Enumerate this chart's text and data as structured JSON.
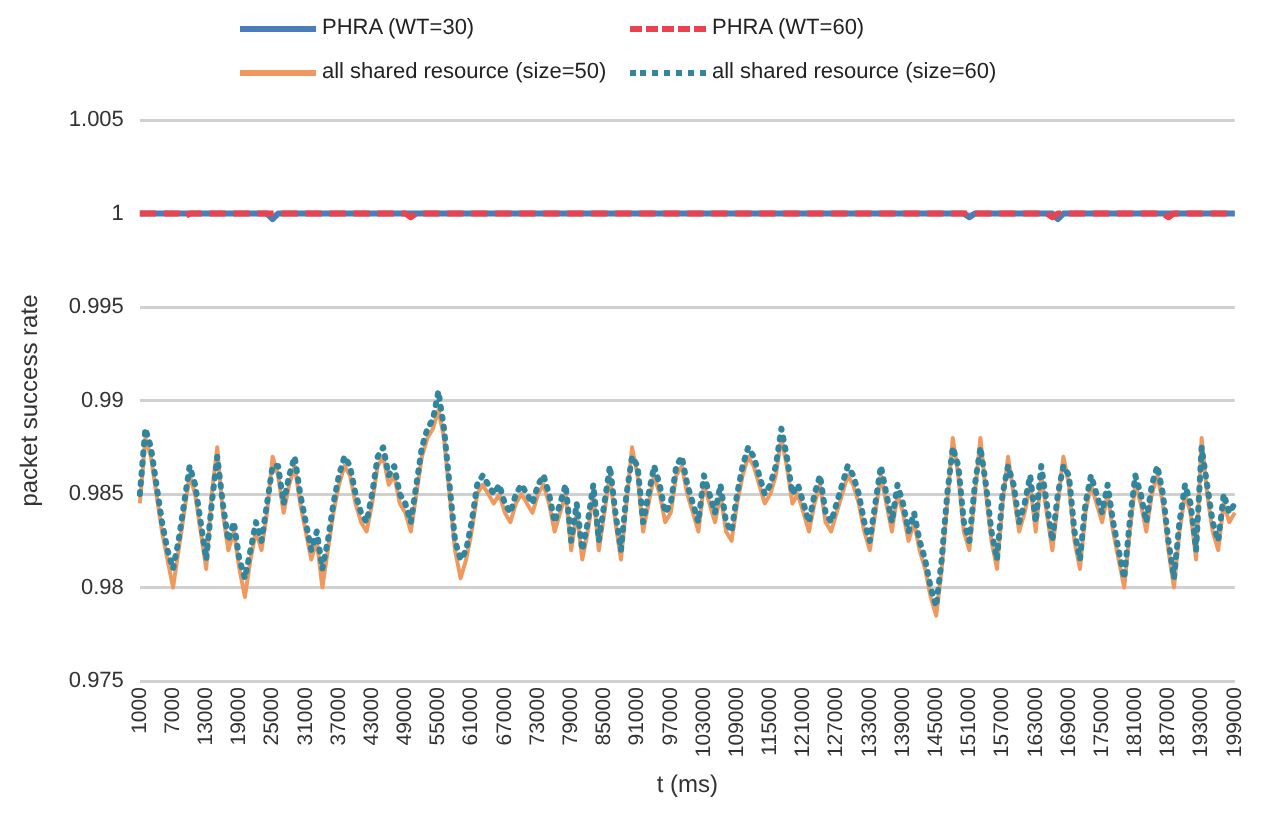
{
  "chart_data": {
    "type": "line",
    "xlabel": "t (ms)",
    "ylabel": "packet success rate",
    "legend": "top",
    "grid": "y",
    "marker": "none",
    "ylim": [
      0.975,
      1.005
    ],
    "yticks": [
      0.975,
      0.98,
      0.985,
      0.99,
      0.995,
      1,
      1.005
    ],
    "categories": [
      "1000",
      null,
      null,
      null,
      null,
      null,
      "7000",
      null,
      null,
      null,
      null,
      null,
      "13000",
      null,
      null,
      null,
      null,
      null,
      "19000",
      null,
      null,
      null,
      null,
      null,
      "25000",
      null,
      null,
      null,
      null,
      null,
      "31000",
      null,
      null,
      null,
      null,
      null,
      "37000",
      null,
      null,
      null,
      null,
      null,
      "43000",
      null,
      null,
      null,
      null,
      null,
      "49000",
      null,
      null,
      null,
      null,
      null,
      "55000",
      null,
      null,
      null,
      null,
      null,
      "61000",
      null,
      null,
      null,
      null,
      null,
      "67000",
      null,
      null,
      null,
      null,
      null,
      "73000",
      null,
      null,
      null,
      null,
      null,
      "79000",
      null,
      null,
      null,
      null,
      null,
      "85000",
      null,
      null,
      null,
      null,
      null,
      "91000",
      null,
      null,
      null,
      null,
      null,
      "97000",
      null,
      null,
      null,
      null,
      null,
      "103000",
      null,
      null,
      null,
      null,
      null,
      "109000",
      null,
      null,
      null,
      null,
      null,
      "115000",
      null,
      null,
      null,
      null,
      null,
      "121000",
      null,
      null,
      null,
      null,
      null,
      "127000",
      null,
      null,
      null,
      null,
      null,
      "133000",
      null,
      null,
      null,
      null,
      null,
      "139000",
      null,
      null,
      null,
      null,
      null,
      "145000",
      null,
      null,
      null,
      null,
      null,
      "151000",
      null,
      null,
      null,
      null,
      null,
      "157000",
      null,
      null,
      null,
      null,
      null,
      "163000",
      null,
      null,
      null,
      null,
      null,
      "169000",
      null,
      null,
      null,
      null,
      null,
      "175000",
      null,
      null,
      null,
      null,
      null,
      "181000",
      null,
      null,
      null,
      null,
      null,
      "187000",
      null,
      null,
      null,
      null,
      null,
      "193000",
      null,
      null,
      null,
      null,
      null,
      "199000"
    ],
    "series": [
      {
        "name": "PHRA (WT=30)",
        "color": "#4a7ebb",
        "line_style": "solid",
        "values": [
          1,
          1,
          1,
          1,
          1,
          1,
          1,
          1,
          1,
          1,
          1,
          1,
          1,
          1,
          1,
          1,
          1,
          1,
          1,
          1,
          1,
          1,
          1,
          1,
          0.9997,
          1,
          1,
          1,
          1,
          1,
          1,
          1,
          1,
          1,
          1,
          1,
          1,
          1,
          1,
          1,
          1,
          1,
          1,
          1,
          1,
          1,
          1,
          1,
          1,
          1,
          1,
          1,
          1,
          1,
          1,
          1,
          1,
          1,
          1,
          1,
          1,
          1,
          1,
          1,
          1,
          1,
          1,
          1,
          1,
          1,
          1,
          1,
          1,
          1,
          1,
          1,
          1,
          1,
          1,
          1,
          1,
          1,
          1,
          1,
          1,
          1,
          1,
          1,
          1,
          1,
          1,
          1,
          1,
          1,
          1,
          1,
          1,
          1,
          1,
          1,
          1,
          1,
          1,
          1,
          1,
          1,
          1,
          1,
          1,
          1,
          1,
          1,
          1,
          1,
          1,
          1,
          1,
          1,
          1,
          1,
          1,
          1,
          1,
          1,
          1,
          1,
          1,
          1,
          1,
          1,
          1,
          1,
          1,
          1,
          1,
          1,
          1,
          1,
          1,
          1,
          1,
          1,
          1,
          1,
          1,
          1,
          1,
          1,
          1,
          1,
          0.9998,
          1,
          1,
          1,
          1,
          1,
          1,
          1,
          1,
          1,
          1,
          1,
          1,
          1,
          1,
          1,
          0.9997,
          1,
          1,
          1,
          1,
          1,
          1,
          1,
          1,
          1,
          1,
          1,
          1,
          1,
          1,
          1,
          1,
          1,
          1,
          1,
          1,
          1,
          1,
          1,
          1,
          1,
          1,
          1,
          1,
          1,
          1,
          1,
          1
        ]
      },
      {
        "name": "PHRA (WT=60)",
        "color": "#e8434f",
        "line_style": "dashed",
        "values": [
          1,
          1,
          1,
          1,
          1,
          1,
          1,
          1,
          0.9998,
          1,
          1,
          1,
          1,
          1,
          1,
          1,
          1,
          1,
          1,
          1,
          1,
          1,
          1,
          1,
          1,
          1,
          1,
          1,
          1,
          1,
          1,
          1,
          1,
          1,
          1,
          1,
          1,
          1,
          1,
          1,
          1,
          1,
          1,
          1,
          1,
          1,
          1,
          1,
          1,
          0.9998,
          1,
          1,
          1,
          1,
          1,
          1,
          1,
          1,
          1,
          1,
          1,
          1,
          1,
          1,
          1,
          1,
          1,
          1,
          1,
          1,
          1,
          1,
          1,
          1,
          1,
          1,
          1,
          1,
          1,
          1,
          1,
          1,
          1,
          1,
          1,
          1,
          1,
          1,
          1,
          1,
          1,
          1,
          1,
          1,
          1,
          1,
          1,
          1,
          1,
          1,
          1,
          1,
          1,
          1,
          1,
          1,
          1,
          1,
          1,
          1,
          1,
          1,
          1,
          1,
          1,
          1,
          1,
          1,
          1,
          1,
          1,
          1,
          1,
          1,
          1,
          1,
          1,
          1,
          1,
          1,
          1,
          1,
          1,
          1,
          1,
          1,
          1,
          1,
          1,
          1,
          1,
          1,
          1,
          1,
          1,
          1,
          1,
          1,
          1,
          1,
          1,
          1,
          1,
          1,
          1,
          1,
          1,
          1,
          1,
          1,
          1,
          1,
          1,
          1,
          1,
          0.9998,
          1,
          1,
          1,
          1,
          1,
          1,
          1,
          1,
          1,
          1,
          1,
          1,
          1,
          1,
          1,
          1,
          1,
          1,
          1,
          1,
          0.9998,
          1,
          1,
          1,
          1,
          1,
          1,
          1,
          1,
          1,
          1,
          1,
          1
        ]
      },
      {
        "name": "all shared resource (size=50)",
        "color": "#f0995e",
        "line_style": "solid",
        "values": [
          0.9845,
          0.988,
          0.987,
          0.985,
          0.983,
          0.9815,
          0.98,
          0.982,
          0.984,
          0.986,
          0.985,
          0.983,
          0.981,
          0.985,
          0.9875,
          0.984,
          0.982,
          0.983,
          0.981,
          0.9795,
          0.9815,
          0.983,
          0.982,
          0.984,
          0.987,
          0.986,
          0.984,
          0.9855,
          0.9865,
          0.9845,
          0.983,
          0.9815,
          0.9825,
          0.98,
          0.982,
          0.984,
          0.9855,
          0.9865,
          0.986,
          0.9845,
          0.9835,
          0.983,
          0.9845,
          0.9865,
          0.987,
          0.9855,
          0.986,
          0.9845,
          0.984,
          0.983,
          0.985,
          0.987,
          0.988,
          0.9885,
          0.9895,
          0.988,
          0.985,
          0.982,
          0.9805,
          0.9815,
          0.983,
          0.985,
          0.9855,
          0.985,
          0.9845,
          0.985,
          0.984,
          0.9835,
          0.9845,
          0.985,
          0.9845,
          0.984,
          0.985,
          0.9855,
          0.9845,
          0.983,
          0.984,
          0.985,
          0.982,
          0.984,
          0.9815,
          0.983,
          0.985,
          0.982,
          0.984,
          0.986,
          0.9835,
          0.9815,
          0.9845,
          0.9875,
          0.986,
          0.983,
          0.9845,
          0.986,
          0.985,
          0.9835,
          0.984,
          0.986,
          0.9865,
          0.985,
          0.984,
          0.983,
          0.9855,
          0.9845,
          0.9835,
          0.985,
          0.983,
          0.9825,
          0.9845,
          0.986,
          0.987,
          0.9865,
          0.9855,
          0.9845,
          0.985,
          0.986,
          0.988,
          0.9865,
          0.9845,
          0.985,
          0.984,
          0.983,
          0.9845,
          0.9855,
          0.9835,
          0.983,
          0.984,
          0.985,
          0.986,
          0.9855,
          0.9845,
          0.983,
          0.982,
          0.984,
          0.986,
          0.9845,
          0.983,
          0.985,
          0.984,
          0.9825,
          0.9835,
          0.982,
          0.981,
          0.9795,
          0.9785,
          0.981,
          0.9845,
          0.988,
          0.986,
          0.983,
          0.982,
          0.985,
          0.988,
          0.985,
          0.9825,
          0.981,
          0.9845,
          0.987,
          0.985,
          0.983,
          0.984,
          0.9855,
          0.983,
          0.986,
          0.984,
          0.982,
          0.9845,
          0.987,
          0.9855,
          0.9825,
          0.981,
          0.984,
          0.9855,
          0.9845,
          0.9835,
          0.985,
          0.983,
          0.9815,
          0.98,
          0.983,
          0.9855,
          0.9845,
          0.983,
          0.985,
          0.986,
          0.9845,
          0.982,
          0.98,
          0.983,
          0.985,
          0.984,
          0.9815,
          0.988,
          0.985,
          0.983,
          0.982,
          0.9845,
          0.9835,
          0.984
        ]
      },
      {
        "name": "all shared resource (size=60)",
        "color": "#31859c",
        "line_style": "dotted",
        "values": [
          0.985,
          0.9885,
          0.9875,
          0.9855,
          0.9835,
          0.982,
          0.981,
          0.9825,
          0.9845,
          0.9865,
          0.9855,
          0.9835,
          0.9815,
          0.9845,
          0.987,
          0.9845,
          0.9825,
          0.9835,
          0.9815,
          0.9805,
          0.982,
          0.9835,
          0.9825,
          0.9845,
          0.9865,
          0.9865,
          0.9845,
          0.986,
          0.987,
          0.985,
          0.9835,
          0.982,
          0.983,
          0.981,
          0.9825,
          0.9845,
          0.986,
          0.987,
          0.9865,
          0.985,
          0.984,
          0.9835,
          0.985,
          0.987,
          0.9875,
          0.986,
          0.9865,
          0.985,
          0.9845,
          0.9835,
          0.9855,
          0.9875,
          0.9885,
          0.989,
          0.9905,
          0.9885,
          0.9855,
          0.9825,
          0.9815,
          0.982,
          0.9835,
          0.9855,
          0.986,
          0.9855,
          0.985,
          0.9855,
          0.9845,
          0.984,
          0.985,
          0.9855,
          0.985,
          0.9845,
          0.9855,
          0.986,
          0.985,
          0.9835,
          0.9845,
          0.9855,
          0.9825,
          0.9845,
          0.982,
          0.9835,
          0.9855,
          0.9825,
          0.9845,
          0.9865,
          0.984,
          0.982,
          0.985,
          0.987,
          0.9865,
          0.9835,
          0.985,
          0.9865,
          0.9855,
          0.984,
          0.9845,
          0.9865,
          0.987,
          0.9855,
          0.9845,
          0.9835,
          0.986,
          0.985,
          0.984,
          0.9855,
          0.9835,
          0.983,
          0.985,
          0.9865,
          0.9875,
          0.987,
          0.986,
          0.985,
          0.9855,
          0.9865,
          0.9885,
          0.987,
          0.985,
          0.9855,
          0.9845,
          0.9835,
          0.985,
          0.986,
          0.984,
          0.9835,
          0.9845,
          0.9855,
          0.9865,
          0.986,
          0.985,
          0.9835,
          0.9825,
          0.9845,
          0.9865,
          0.985,
          0.9835,
          0.9855,
          0.9845,
          0.983,
          0.984,
          0.9825,
          0.9815,
          0.98,
          0.979,
          0.9815,
          0.985,
          0.9875,
          0.9865,
          0.9835,
          0.9825,
          0.9855,
          0.9875,
          0.9855,
          0.983,
          0.9815,
          0.985,
          0.9865,
          0.9855,
          0.9835,
          0.9845,
          0.986,
          0.9835,
          0.9865,
          0.9845,
          0.9825,
          0.985,
          0.9865,
          0.986,
          0.983,
          0.9815,
          0.9845,
          0.986,
          0.985,
          0.984,
          0.9855,
          0.9835,
          0.982,
          0.9805,
          0.9835,
          0.986,
          0.985,
          0.9835,
          0.9855,
          0.9865,
          0.985,
          0.9825,
          0.9805,
          0.9835,
          0.9855,
          0.9845,
          0.982,
          0.9875,
          0.9855,
          0.9835,
          0.9825,
          0.985,
          0.984,
          0.9845
        ]
      }
    ]
  }
}
